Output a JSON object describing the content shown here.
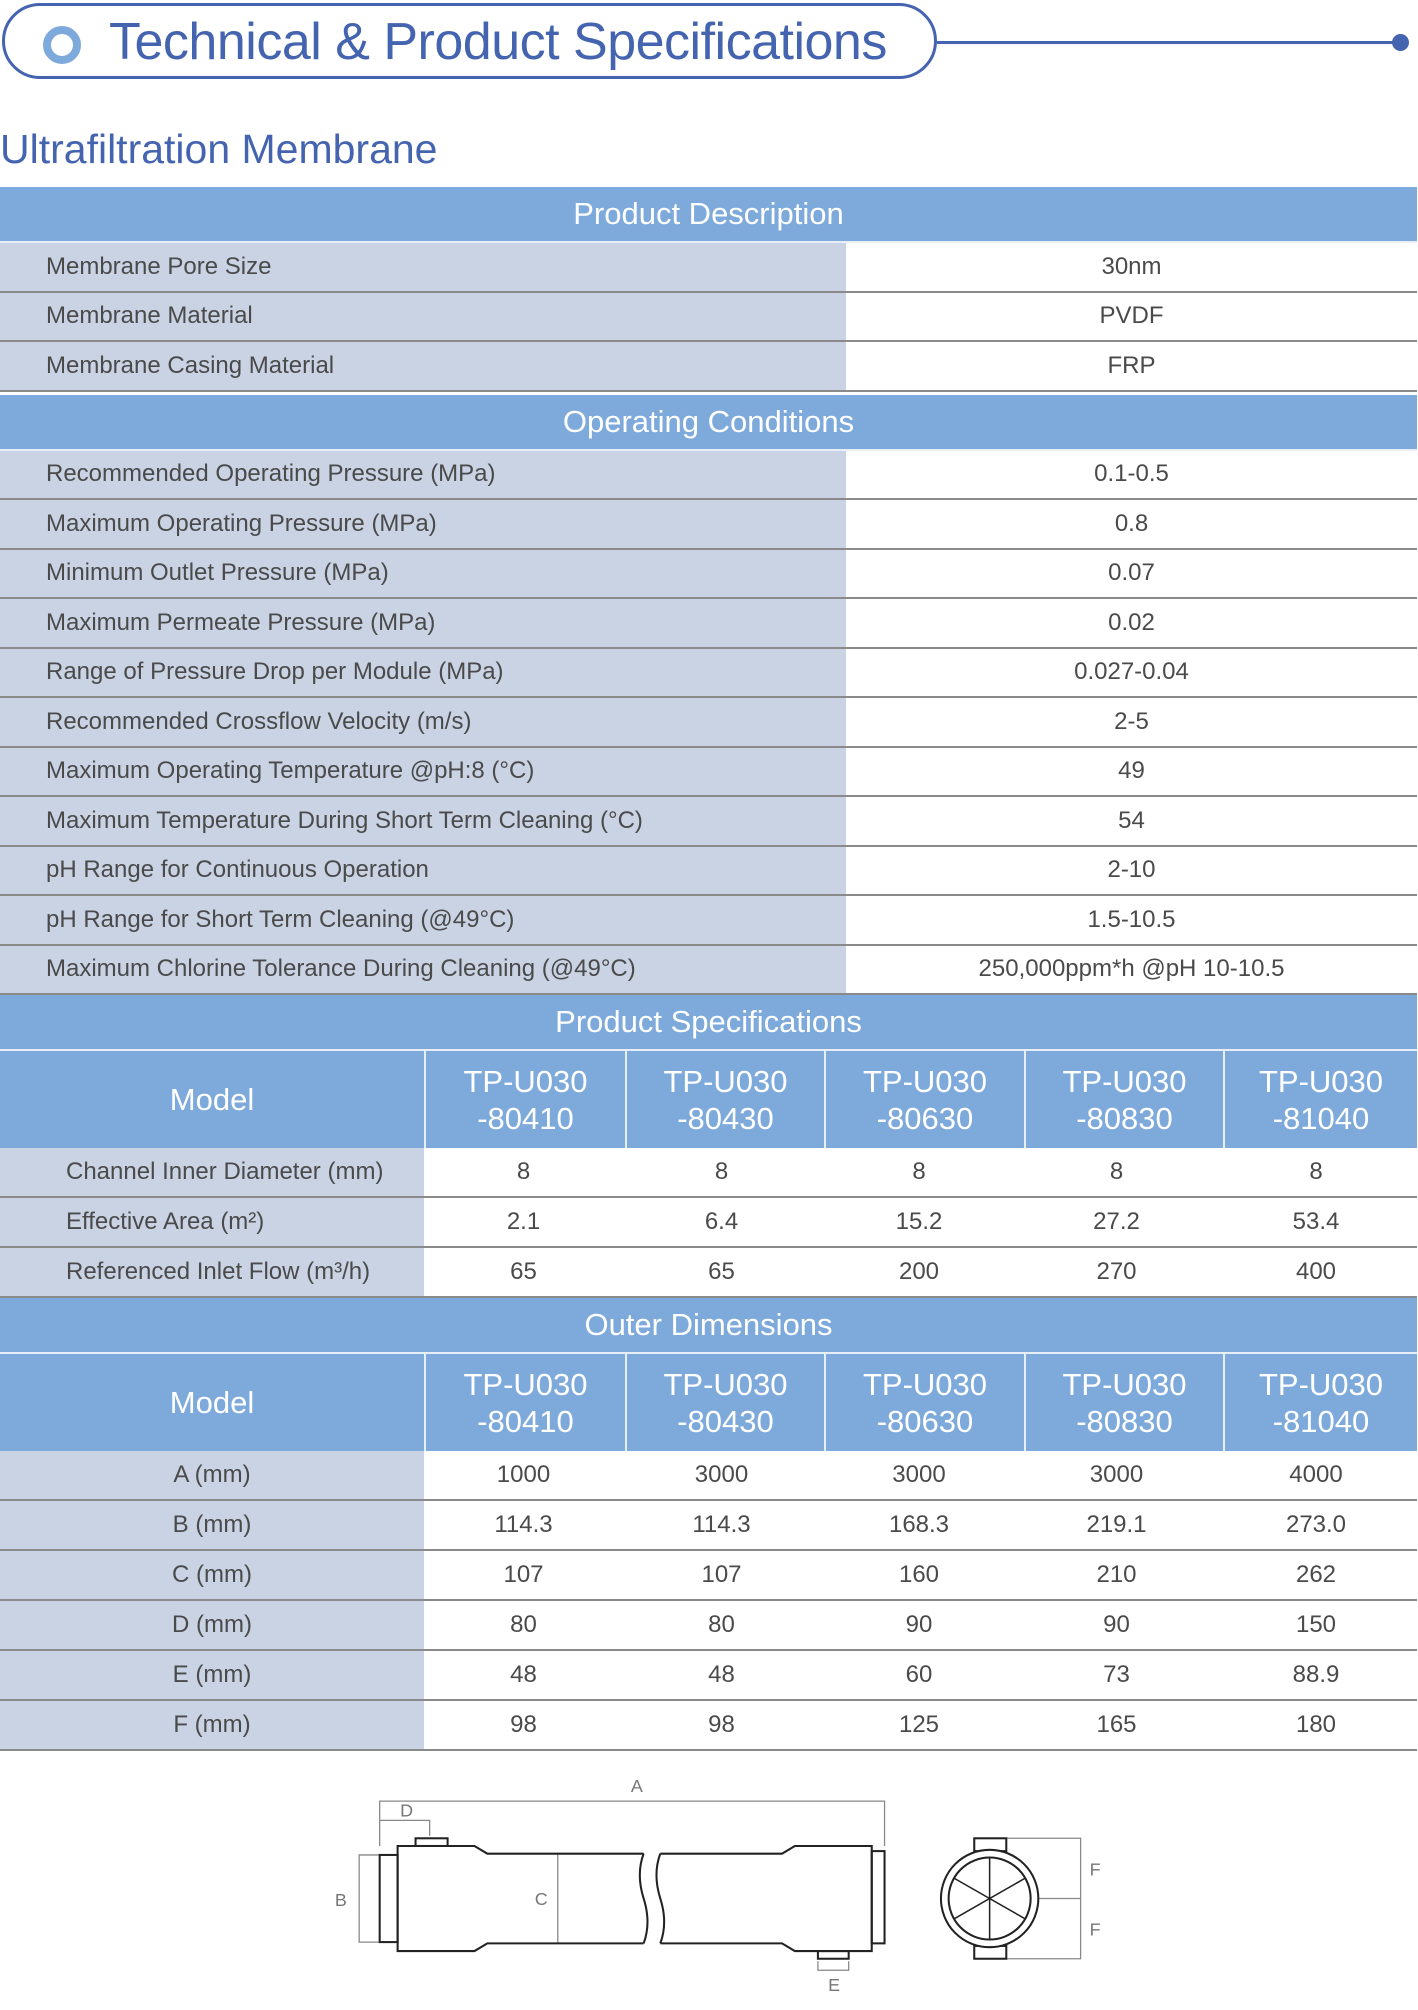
{
  "header": {
    "title": "Technical & Product Specifications"
  },
  "subtitle": "Ultrafiltration Membrane",
  "colors": {
    "accent": "#4564b0",
    "header_bg": "#7eaadb",
    "label_bg": "#c9d3e4"
  },
  "product_description": {
    "title": "Product Description",
    "rows": [
      {
        "label": "Membrane Pore Size",
        "value": "30nm"
      },
      {
        "label": "Membrane Material",
        "value": "PVDF"
      },
      {
        "label": "Membrane Casing Material",
        "value": "FRP"
      }
    ]
  },
  "operating_conditions": {
    "title": "Operating Conditions",
    "rows": [
      {
        "label": "Recommended Operating Pressure (MPa)",
        "value": "0.1-0.5"
      },
      {
        "label": "Maximum Operating Pressure (MPa)",
        "value": "0.8"
      },
      {
        "label": "Minimum Outlet Pressure (MPa)",
        "value": "0.07"
      },
      {
        "label": "Maximum Permeate Pressure (MPa)",
        "value": "0.02"
      },
      {
        "label": "Range of Pressure Drop per Module (MPa)",
        "value": "0.027-0.04"
      },
      {
        "label": "Recommended Crossflow Velocity (m/s)",
        "value": "2-5"
      },
      {
        "label": "Maximum Operating Temperature @pH:8 (°C)",
        "value": "49"
      },
      {
        "label": "Maximum Temperature During Short Term Cleaning (°C)",
        "value": "54"
      },
      {
        "label": "pH Range for Continuous Operation",
        "value": "2-10"
      },
      {
        "label": "pH Range for Short Term Cleaning  (@49°C)",
        "value": "1.5-10.5"
      },
      {
        "label": "Maximum Chlorine Tolerance During Cleaning (@49°C)",
        "value": "250,000ppm*h @pH 10-10.5"
      }
    ]
  },
  "product_specifications": {
    "title": "Product Specifications",
    "model_label": "Model",
    "models": [
      {
        "line1": "TP-U030",
        "line2": "-80410"
      },
      {
        "line1": "TP-U030",
        "line2": "-80430"
      },
      {
        "line1": "TP-U030",
        "line2": "-80630"
      },
      {
        "line1": "TP-U030",
        "line2": "-80830"
      },
      {
        "line1": "TP-U030",
        "line2": "-81040"
      }
    ],
    "rows": [
      {
        "label": "Channel Inner Diameter (mm)",
        "values": [
          "8",
          "8",
          "8",
          "8",
          "8"
        ]
      },
      {
        "label": "Effective Area (m²)",
        "values": [
          "2.1",
          "6.4",
          "15.2",
          "27.2",
          "53.4"
        ]
      },
      {
        "label": "Referenced Inlet Flow (m³/h)",
        "values": [
          "65",
          "65",
          "200",
          "270",
          "400"
        ]
      }
    ]
  },
  "outer_dimensions": {
    "title": "Outer Dimensions",
    "model_label": "Model",
    "models": [
      {
        "line1": "TP-U030",
        "line2": "-80410"
      },
      {
        "line1": "TP-U030",
        "line2": "-80430"
      },
      {
        "line1": "TP-U030",
        "line2": "-80630"
      },
      {
        "line1": "TP-U030",
        "line2": "-80830"
      },
      {
        "line1": "TP-U030",
        "line2": "-81040"
      }
    ],
    "rows": [
      {
        "label": "A (mm)",
        "values": [
          "1000",
          "3000",
          "3000",
          "3000",
          "4000"
        ]
      },
      {
        "label": "B (mm)",
        "values": [
          "114.3",
          "114.3",
          "168.3",
          "219.1",
          "273.0"
        ]
      },
      {
        "label": "C (mm)",
        "values": [
          "107",
          "107",
          "160",
          "210",
          "262"
        ]
      },
      {
        "label": "D (mm)",
        "values": [
          "80",
          "80",
          "90",
          "90",
          "150"
        ]
      },
      {
        "label": "E (mm)",
        "values": [
          "48",
          "48",
          "60",
          "73",
          "88.9"
        ]
      },
      {
        "label": "F (mm)",
        "values": [
          "98",
          "98",
          "125",
          "165",
          "180"
        ]
      }
    ]
  },
  "diagram": {
    "labels": {
      "a": "A",
      "b": "B",
      "c": "C",
      "d": "D",
      "e": "E",
      "f1": "F",
      "f2": "F"
    }
  }
}
